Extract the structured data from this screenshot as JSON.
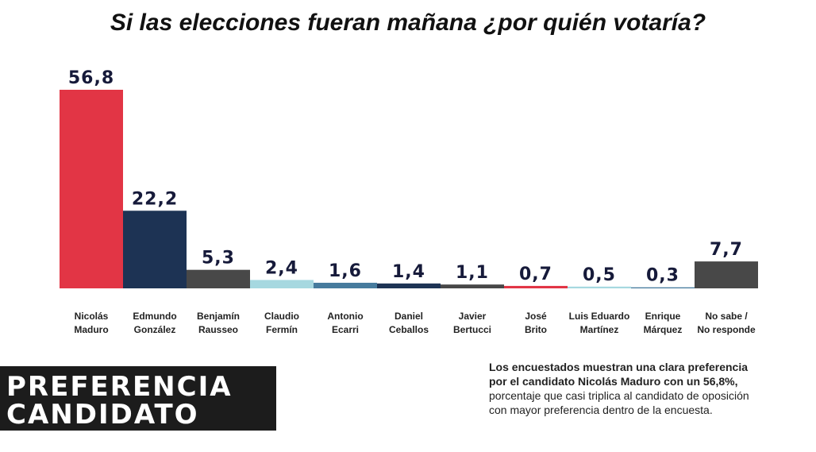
{
  "chart_data": {
    "type": "bar",
    "title": "Si las elecciones fueran mañana ¿por quién votaría?",
    "categories": [
      [
        "Nicolás",
        "Maduro"
      ],
      [
        "Edmundo",
        "González"
      ],
      [
        "Benjamín",
        "Rausseo"
      ],
      [
        "Claudio",
        "Fermín"
      ],
      [
        "Antonio",
        "Ecarri"
      ],
      [
        "Daniel",
        "Ceballos"
      ],
      [
        "Javier",
        "Bertucci"
      ],
      [
        "José",
        "Brito"
      ],
      [
        "Luis Eduardo",
        "Martínez"
      ],
      [
        "Enrique",
        "Márquez"
      ],
      [
        "No sabe /",
        "No responde"
      ]
    ],
    "values": [
      56.8,
      22.2,
      5.3,
      2.4,
      1.6,
      1.4,
      1.1,
      0.7,
      0.5,
      0.3,
      7.7
    ],
    "value_labels": [
      "56,8",
      "22,2",
      "5,3",
      "2,4",
      "1,6",
      "1,4",
      "1,1",
      "0,7",
      "0,5",
      "0,3",
      "7,7"
    ],
    "colors": [
      "#e23545",
      "#1d3354",
      "#484848",
      "#a6d8e0",
      "#467b9d",
      "#1d3354",
      "#484848",
      "#e23545",
      "#a6d8e0",
      "#467b9d",
      "#484848"
    ],
    "ylim": [
      0,
      56.8
    ],
    "grid": false,
    "legend": "none"
  },
  "badge": {
    "line1": "PREFERENCIA",
    "line2": "CANDIDATO"
  },
  "note": {
    "bold1": "Los encuestados muestran una clara preferencia",
    "bold2": "por el candidato Nicolás Maduro con un 56,8%,",
    "normal1": "porcentaje que casi triplica al candidato de oposición",
    "normal2": "con mayor preferencia dentro de la encuesta."
  },
  "colors": {
    "label_color": "#161a3a",
    "category_color": "#222222"
  }
}
